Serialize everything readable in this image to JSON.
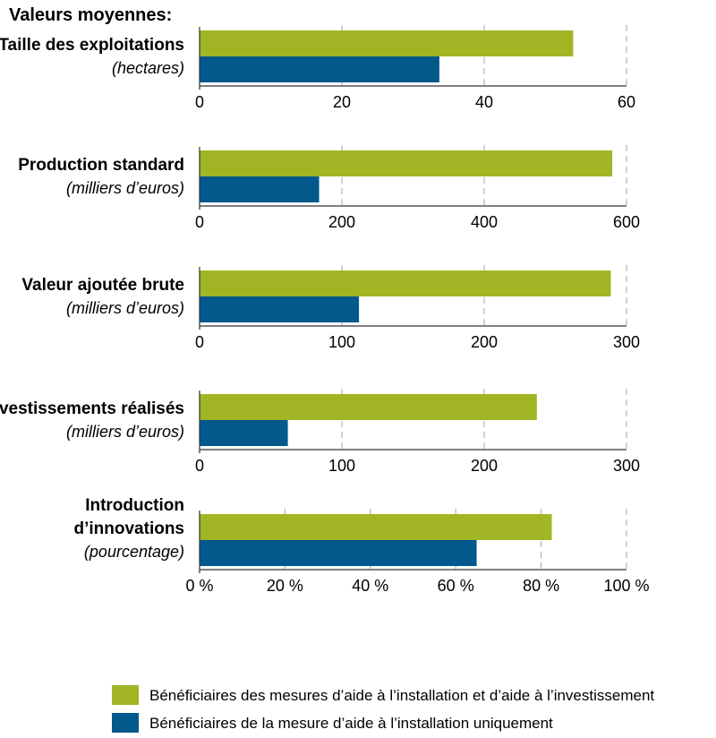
{
  "page_title": "Valeurs moyennes:",
  "colors": {
    "series1": "#a2b524",
    "series2": "#03588c",
    "axis": "#333333",
    "grid": "#b3b3b3"
  },
  "legend": {
    "items": [
      "Bénéficiaires des mesures d’aide à l’installation et d’aide à l’investissement",
      "Bénéficiaires de la mesure d’aide à l’installation uniquement"
    ]
  },
  "chart_data": [
    {
      "type": "bar",
      "orientation": "horizontal",
      "label_lines": [
        "Taille des exploitations"
      ],
      "unit": "(hectares)",
      "xlim": [
        0,
        60
      ],
      "ticks": [
        0,
        20,
        40,
        60
      ],
      "tick_labels": [
        "0",
        "20",
        "40",
        "60"
      ],
      "series": [
        {
          "name": "Bénéficiaires des mesures d’aide à l’installation et d’aide à l’investissement",
          "value": 52.5
        },
        {
          "name": "Bénéficiaires de la mesure d’aide à l’installation uniquement",
          "value": 33.7
        }
      ]
    },
    {
      "type": "bar",
      "orientation": "horizontal",
      "label_lines": [
        "Production standard"
      ],
      "unit": "(milliers d’euros)",
      "xlim": [
        0,
        600
      ],
      "ticks": [
        0,
        200,
        400,
        600
      ],
      "tick_labels": [
        "0",
        "200",
        "400",
        "600"
      ],
      "series": [
        {
          "name": "Bénéficiaires des mesures d’aide à l’installation et d’aide à l’investissement",
          "value": 580
        },
        {
          "name": "Bénéficiaires de la mesure d’aide à l’installation uniquement",
          "value": 168
        }
      ]
    },
    {
      "type": "bar",
      "orientation": "horizontal",
      "label_lines": [
        "Valeur ajoutée brute"
      ],
      "unit": "(milliers d’euros)",
      "xlim": [
        0,
        300
      ],
      "ticks": [
        0,
        100,
        200,
        300
      ],
      "tick_labels": [
        "0",
        "100",
        "200",
        "300"
      ],
      "series": [
        {
          "name": "Bénéficiaires des mesures d’aide à l’installation et d’aide à l’investissement",
          "value": 289
        },
        {
          "name": "Bénéficiaires de la mesure d’aide à l’installation uniquement",
          "value": 112
        }
      ]
    },
    {
      "type": "bar",
      "orientation": "horizontal",
      "label_lines": [
        "Investissements réalisés"
      ],
      "unit": "(milliers d’euros)",
      "xlim": [
        0,
        300
      ],
      "ticks": [
        0,
        100,
        200,
        300
      ],
      "tick_labels": [
        "0",
        "100",
        "200",
        "300"
      ],
      "series": [
        {
          "name": "Bénéficiaires des mesures d’aide à l’installation et d’aide à l’investissement",
          "value": 237
        },
        {
          "name": "Bénéficiaires de la mesure d’aide à l’installation uniquement",
          "value": 62
        }
      ]
    },
    {
      "type": "bar",
      "orientation": "horizontal",
      "label_lines": [
        "Introduction",
        "d’innovations"
      ],
      "unit": "(pourcentage)",
      "xlim": [
        0,
        100
      ],
      "ticks": [
        0,
        20,
        40,
        60,
        80,
        100
      ],
      "tick_labels": [
        "0 %",
        "20 %",
        "40 %",
        "60 %",
        "80 %",
        "100 %"
      ],
      "series": [
        {
          "name": "Bénéficiaires des mesures d’aide à l’installation et d’aide à l’investissement",
          "value": 82.5
        },
        {
          "name": "Bénéficiaires de la mesure d’aide à l’installation uniquement",
          "value": 64.9
        }
      ]
    }
  ]
}
